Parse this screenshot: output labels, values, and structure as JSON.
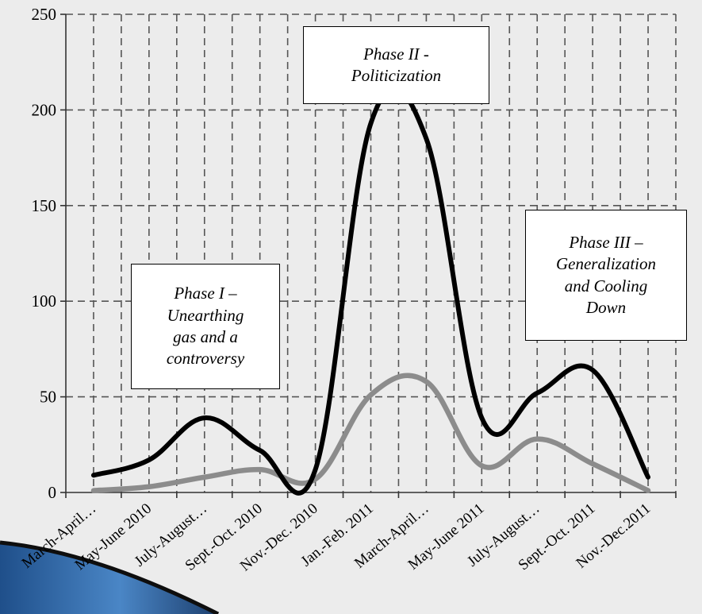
{
  "chart_data": {
    "type": "line",
    "categories": [
      "March-April…",
      "May-June 2010",
      "July-August…",
      "Sept.-Oct. 2010",
      "Nov.-Dec. 2010",
      "Jan.-Feb. 2011",
      "March-April…",
      "May-June 2011",
      "July-August…",
      "Sept.-Oct. 2011",
      "Nov.-Dec.2011"
    ],
    "series": [
      {
        "color": "#000000",
        "values": [
          9,
          17,
          39,
          22,
          12,
          193,
          185,
          39,
          52,
          64,
          8
        ]
      },
      {
        "color": "#8c8c8c",
        "values": [
          1,
          3,
          8,
          12,
          7,
          51,
          58,
          14,
          28,
          15,
          1
        ]
      }
    ],
    "ylim": [
      0,
      250
    ],
    "yticks": [
      "0",
      "50",
      "100",
      "150",
      "200",
      "250"
    ],
    "grid": true,
    "annotations": [
      "Phase I –\nUnearthing\ngas and a\ncontroversy",
      "Phase II -\nPoliticization",
      "Phase III –\nGeneralization\nand Cooling\nDown"
    ]
  }
}
